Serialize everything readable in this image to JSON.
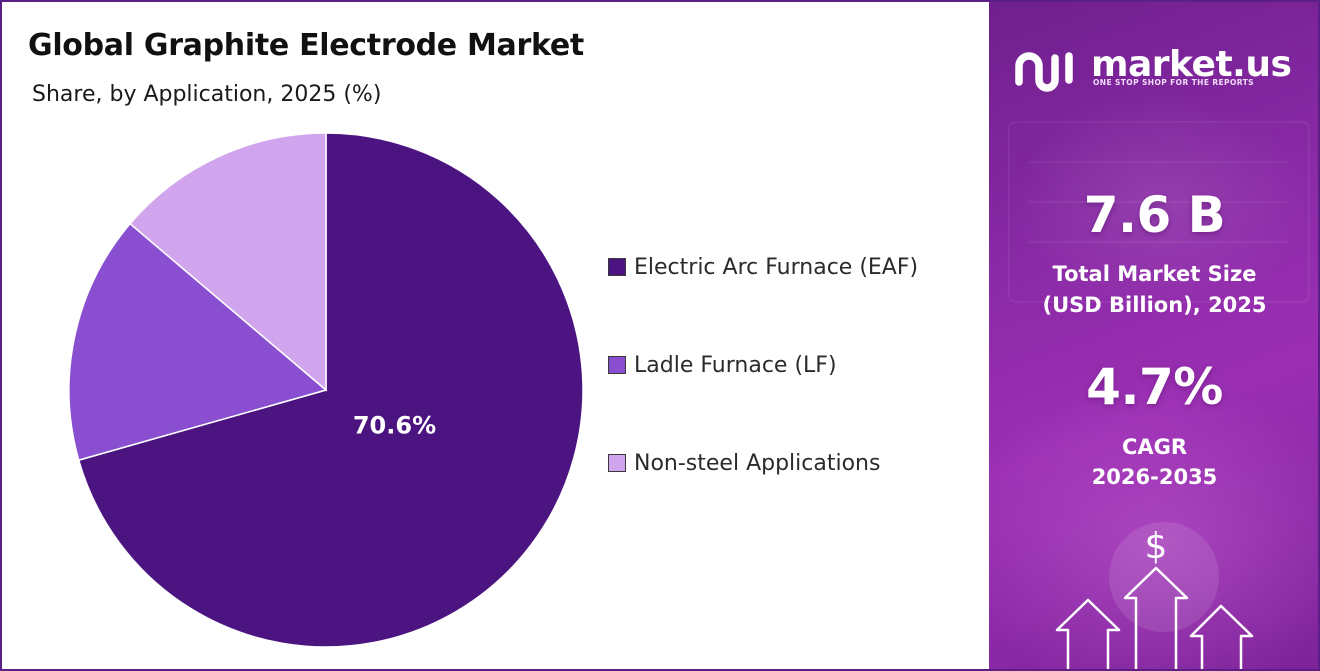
{
  "header": {
    "title": "Global Graphite Electrode Market",
    "subtitle": "Share, by Application, 2025 (%)"
  },
  "chart_data": {
    "type": "pie",
    "title": "Global Graphite Electrode Market",
    "subtitle": "Share, by Application, 2025 (%)",
    "categories": [
      "Electric Arc Furnace (EAF)",
      "Ladle Furnace (LF)",
      "Non-steel Applications"
    ],
    "values": [
      70.6,
      15.6,
      13.8
    ],
    "data_labels": [
      "70.6%",
      "",
      ""
    ],
    "colors": [
      "#4b1480",
      "#8a4fd0",
      "#d1a5ee"
    ],
    "start_angle_deg": 0,
    "direction": "clockwise",
    "legend_position": "right"
  },
  "legend": {
    "items": [
      {
        "label": "Electric Arc Furnace (EAF)",
        "color": "#4b1480"
      },
      {
        "label": "Ladle Furnace (LF)",
        "color": "#8a4fd0"
      },
      {
        "label": "Non-steel Applications",
        "color": "#d1a5ee"
      }
    ]
  },
  "sidebar": {
    "brand": "market.us",
    "tagline": "ONE STOP SHOP FOR THE REPORTS",
    "market_size_value": "7.6 B",
    "market_size_label_line1": "Total Market Size",
    "market_size_label_line2": "(USD Billion), 2025",
    "cagr_value": "4.7%",
    "cagr_label_line1": "CAGR",
    "cagr_label_line2": "2026-2035",
    "dollar_symbol": "$",
    "icons": [
      "market-us-logo-icon",
      "dollar-icon",
      "arrow-up-icon"
    ]
  },
  "colors": {
    "accent": "#5b1f86",
    "sidebar_bg": "#8a2aa6",
    "text": "#111111"
  }
}
